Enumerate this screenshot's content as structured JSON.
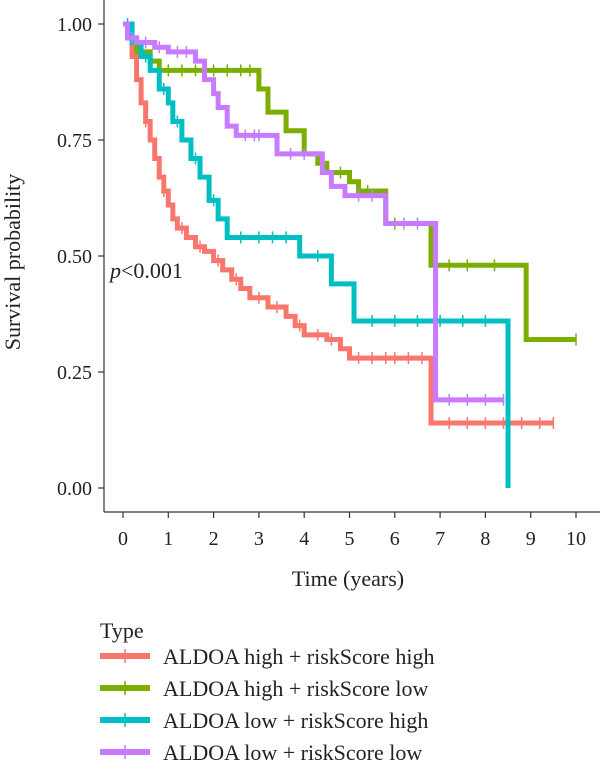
{
  "chart_data": {
    "type": "line",
    "subtype": "kaplan-meier step curves with censor marks",
    "title": "",
    "xlabel": "Time (years)",
    "ylabel": "Survival probability",
    "xlim": [
      -0.4,
      10.5
    ],
    "ylim": [
      0,
      1.0
    ],
    "x_ticks": [
      0,
      1,
      2,
      3,
      4,
      5,
      6,
      7,
      8,
      9,
      10
    ],
    "y_ticks": [
      0.0,
      0.25,
      0.5,
      0.75,
      1.0
    ],
    "y_tick_labels": [
      "0.00",
      "0.25",
      "0.50",
      "0.75",
      "1.00"
    ],
    "grid": false,
    "annotation": {
      "p_letter": "p",
      "rest": "<0.001",
      "x": 0,
      "y": 0.47
    },
    "legend": {
      "title": "Type",
      "position": "bottom"
    },
    "series": [
      {
        "name": "ALDOA high + riskScore high",
        "color": "#F8766D",
        "points": [
          [
            0,
            1.0
          ],
          [
            0.1,
            0.97
          ],
          [
            0.2,
            0.93
          ],
          [
            0.3,
            0.88
          ],
          [
            0.4,
            0.83
          ],
          [
            0.5,
            0.79
          ],
          [
            0.6,
            0.75
          ],
          [
            0.7,
            0.71
          ],
          [
            0.8,
            0.67
          ],
          [
            0.9,
            0.64
          ],
          [
            1.0,
            0.61
          ],
          [
            1.1,
            0.58
          ],
          [
            1.2,
            0.56
          ],
          [
            1.4,
            0.54
          ],
          [
            1.6,
            0.52
          ],
          [
            1.8,
            0.51
          ],
          [
            2.0,
            0.49
          ],
          [
            2.2,
            0.47
          ],
          [
            2.4,
            0.45
          ],
          [
            2.6,
            0.43
          ],
          [
            2.8,
            0.41
          ],
          [
            3.2,
            0.39
          ],
          [
            3.6,
            0.37
          ],
          [
            3.8,
            0.35
          ],
          [
            4.0,
            0.33
          ],
          [
            4.5,
            0.32
          ],
          [
            4.8,
            0.3
          ],
          [
            5.0,
            0.28
          ],
          [
            6.8,
            0.28
          ],
          [
            6.8,
            0.14
          ],
          [
            9.5,
            0.14
          ]
        ],
        "censor": [
          0.5,
          0.9,
          1.3,
          1.7,
          2.1,
          2.5,
          3.0,
          3.4,
          3.9,
          4.3,
          4.6,
          5.2,
          5.5,
          5.8,
          6.0,
          6.3,
          6.6,
          7.2,
          7.6,
          8.0,
          8.4,
          8.8,
          9.2,
          9.5
        ]
      },
      {
        "name": "ALDOA high + riskScore low",
        "color": "#7CAE00",
        "points": [
          [
            0,
            1.0
          ],
          [
            0.1,
            0.97
          ],
          [
            0.3,
            0.94
          ],
          [
            0.6,
            0.92
          ],
          [
            0.8,
            0.9
          ],
          [
            3.0,
            0.9
          ],
          [
            3.0,
            0.86
          ],
          [
            3.2,
            0.81
          ],
          [
            3.6,
            0.77
          ],
          [
            4.0,
            0.72
          ],
          [
            4.3,
            0.7
          ],
          [
            4.5,
            0.68
          ],
          [
            5.0,
            0.66
          ],
          [
            5.2,
            0.64
          ],
          [
            5.8,
            0.64
          ],
          [
            5.8,
            0.57
          ],
          [
            6.8,
            0.57
          ],
          [
            6.8,
            0.48
          ],
          [
            8.9,
            0.48
          ],
          [
            8.9,
            0.32
          ],
          [
            10.0,
            0.32
          ]
        ],
        "censor": [
          0.2,
          0.4,
          1.0,
          1.3,
          1.6,
          2.0,
          2.3,
          2.6,
          2.8,
          4.4,
          4.8,
          5.4,
          6.0,
          7.2,
          7.6,
          8.2,
          10.0
        ]
      },
      {
        "name": "ALDOA low + riskScore high",
        "color": "#00BFC4",
        "points": [
          [
            0,
            1.0
          ],
          [
            0.2,
            0.96
          ],
          [
            0.4,
            0.93
          ],
          [
            0.6,
            0.9
          ],
          [
            0.8,
            0.86
          ],
          [
            1.0,
            0.83
          ],
          [
            1.1,
            0.79
          ],
          [
            1.3,
            0.75
          ],
          [
            1.5,
            0.71
          ],
          [
            1.7,
            0.67
          ],
          [
            1.9,
            0.62
          ],
          [
            2.1,
            0.58
          ],
          [
            2.3,
            0.54
          ],
          [
            3.9,
            0.54
          ],
          [
            3.9,
            0.5
          ],
          [
            4.6,
            0.5
          ],
          [
            4.6,
            0.44
          ],
          [
            5.1,
            0.44
          ],
          [
            5.1,
            0.36
          ],
          [
            8.5,
            0.36
          ],
          [
            8.5,
            0.0
          ]
        ],
        "censor": [
          0.1,
          0.5,
          0.9,
          1.2,
          1.6,
          2.0,
          2.6,
          3.0,
          3.3,
          3.6,
          4.3,
          5.5,
          6.0,
          6.5,
          7.0,
          7.5,
          8.0
        ]
      },
      {
        "name": "ALDOA low + riskScore low",
        "color": "#C77CFF",
        "points": [
          [
            0,
            1.0
          ],
          [
            0.1,
            0.97
          ],
          [
            0.3,
            0.96
          ],
          [
            0.7,
            0.95
          ],
          [
            1.0,
            0.94
          ],
          [
            1.6,
            0.92
          ],
          [
            1.8,
            0.88
          ],
          [
            2.0,
            0.85
          ],
          [
            2.1,
            0.82
          ],
          [
            2.3,
            0.78
          ],
          [
            2.5,
            0.76
          ],
          [
            3.2,
            0.76
          ],
          [
            3.4,
            0.72
          ],
          [
            4.2,
            0.72
          ],
          [
            4.4,
            0.68
          ],
          [
            4.6,
            0.65
          ],
          [
            4.9,
            0.63
          ],
          [
            5.8,
            0.63
          ],
          [
            5.8,
            0.57
          ],
          [
            6.9,
            0.57
          ],
          [
            6.9,
            0.19
          ],
          [
            8.4,
            0.19
          ]
        ],
        "censor": [
          0.2,
          0.5,
          0.8,
          1.2,
          1.4,
          2.7,
          2.9,
          3.0,
          3.7,
          4.0,
          5.2,
          5.5,
          6.2,
          6.5,
          7.2,
          7.6,
          8.0,
          8.4
        ]
      }
    ]
  }
}
